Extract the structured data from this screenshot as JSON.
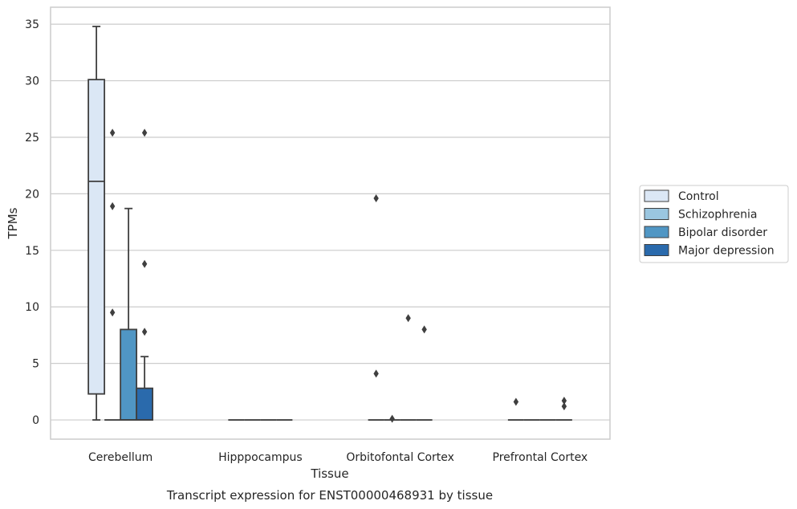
{
  "chart_data": {
    "type": "box",
    "title": "",
    "caption": "Transcript expression for ENST00000468931 by tissue",
    "xlabel": "Tissue",
    "ylabel": "TPMs",
    "ylim": [
      -1.7,
      36.5
    ],
    "yticks": [
      0,
      5,
      10,
      15,
      20,
      25,
      30,
      35
    ],
    "grid": true,
    "legend_position": "right",
    "categories": [
      "Cerebellum",
      "Hipppocampus",
      "Orbitofontal Cortex",
      "Prefrontal Cortex"
    ],
    "series": [
      {
        "name": "Control",
        "color": "#dbe7f5",
        "boxes": [
          {
            "q1": 2.3,
            "median": 21.1,
            "q3": 30.1,
            "whisker_low": 0,
            "whisker_high": 34.8,
            "outliers": []
          },
          {
            "q1": 0,
            "median": 0,
            "q3": 0,
            "whisker_low": 0,
            "whisker_high": 0,
            "outliers": []
          },
          {
            "q1": 0,
            "median": 0,
            "q3": 0,
            "whisker_low": 0,
            "whisker_high": 0,
            "outliers": [
              19.6,
              4.1
            ]
          },
          {
            "q1": 0,
            "median": 0,
            "q3": 0,
            "whisker_low": 0,
            "whisker_high": 0,
            "outliers": [
              1.6
            ]
          }
        ]
      },
      {
        "name": "Schizophrenia",
        "color": "#9ac6e0",
        "boxes": [
          {
            "q1": 0,
            "median": 0,
            "q3": 0,
            "whisker_low": 0,
            "whisker_high": 0,
            "outliers": [
              25.4,
              18.9,
              9.5
            ]
          },
          {
            "q1": 0,
            "median": 0,
            "q3": 0,
            "whisker_low": 0,
            "whisker_high": 0,
            "outliers": []
          },
          {
            "q1": 0,
            "median": 0,
            "q3": 0,
            "whisker_low": 0,
            "whisker_high": 0,
            "outliers": [
              0.1
            ]
          },
          {
            "q1": 0,
            "median": 0,
            "q3": 0,
            "whisker_low": 0,
            "whisker_high": 0,
            "outliers": []
          }
        ]
      },
      {
        "name": "Bipolar disorder",
        "color": "#5096c4",
        "boxes": [
          {
            "q1": 0,
            "median": 0,
            "q3": 8.0,
            "whisker_low": 0,
            "whisker_high": 18.7,
            "outliers": []
          },
          {
            "q1": 0,
            "median": 0,
            "q3": 0,
            "whisker_low": 0,
            "whisker_high": 0,
            "outliers": []
          },
          {
            "q1": 0,
            "median": 0,
            "q3": 0,
            "whisker_low": 0,
            "whisker_high": 0,
            "outliers": [
              9.0
            ]
          },
          {
            "q1": 0,
            "median": 0,
            "q3": 0,
            "whisker_low": 0,
            "whisker_high": 0,
            "outliers": []
          }
        ]
      },
      {
        "name": "Major depression",
        "color": "#2a6aac",
        "boxes": [
          {
            "q1": 0,
            "median": 0,
            "q3": 2.8,
            "whisker_low": 0,
            "whisker_high": 5.6,
            "outliers": [
              25.4,
              13.8,
              7.8
            ]
          },
          {
            "q1": 0,
            "median": 0,
            "q3": 0,
            "whisker_low": 0,
            "whisker_high": 0,
            "outliers": []
          },
          {
            "q1": 0,
            "median": 0,
            "q3": 0,
            "whisker_low": 0,
            "whisker_high": 0,
            "outliers": [
              8.0
            ]
          },
          {
            "q1": 0,
            "median": 0,
            "q3": 0,
            "whisker_low": 0,
            "whisker_high": 0,
            "outliers": [
              1.7,
              1.2
            ]
          }
        ]
      }
    ]
  }
}
